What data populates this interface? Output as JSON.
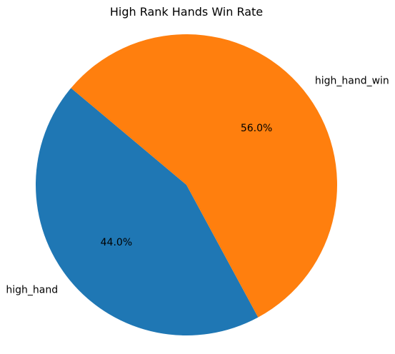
{
  "chart_data": {
    "type": "pie",
    "title": "High Rank Hands Win Rate",
    "slices": [
      {
        "label": "high_hand",
        "value": 44.0,
        "pct_label": "44.0%",
        "color": "#1f77b4"
      },
      {
        "label": "high_hand_win",
        "value": 56.0,
        "pct_label": "56.0%",
        "color": "#ff7f0e"
      }
    ],
    "start_angle_deg": 140,
    "direction": "counterclockwise"
  }
}
